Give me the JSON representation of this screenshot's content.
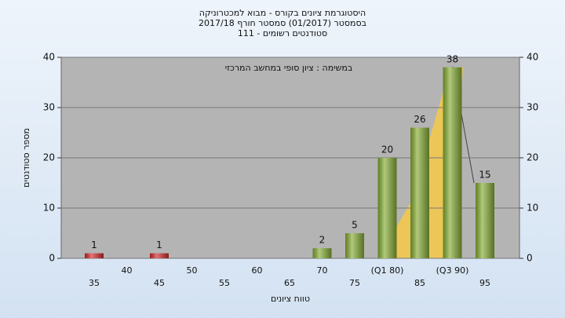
{
  "chart_data": {
    "type": "bar",
    "title": [
      "היסטוגרמת ציונים בקורס - מבוא למכטרוניקה",
      "בסמסטר  (01/2017)  סמסטר חורף 2017/18",
      "סטודנטים רשומים - 111"
    ],
    "annotation": "במשימה : ציון סופי במחשב המרכזי",
    "xlabel": "טווח ציונים",
    "ylabel": "מספר סטודנטים",
    "categories": [
      "35",
      "40",
      "45",
      "50",
      "55",
      "60",
      "65",
      "70",
      "75",
      "(Q1 80)",
      "85",
      "(Q3 90)",
      "95"
    ],
    "values": [
      1,
      null,
      1,
      null,
      null,
      null,
      null,
      2,
      5,
      20,
      26,
      38,
      15
    ],
    "colors": [
      "#d42a2a",
      null,
      "#d42a2a",
      null,
      null,
      null,
      null,
      "#86ad34",
      "#86ad34",
      "#86ad34",
      "#86ad34",
      "#86ad34",
      "#86ad34"
    ],
    "ylim": [
      0,
      40
    ],
    "yticks": [
      0,
      10,
      20,
      30,
      40
    ],
    "y2lim": [
      0,
      40
    ],
    "y2ticks": [
      0,
      10,
      20,
      30,
      40
    ],
    "grid": true
  }
}
